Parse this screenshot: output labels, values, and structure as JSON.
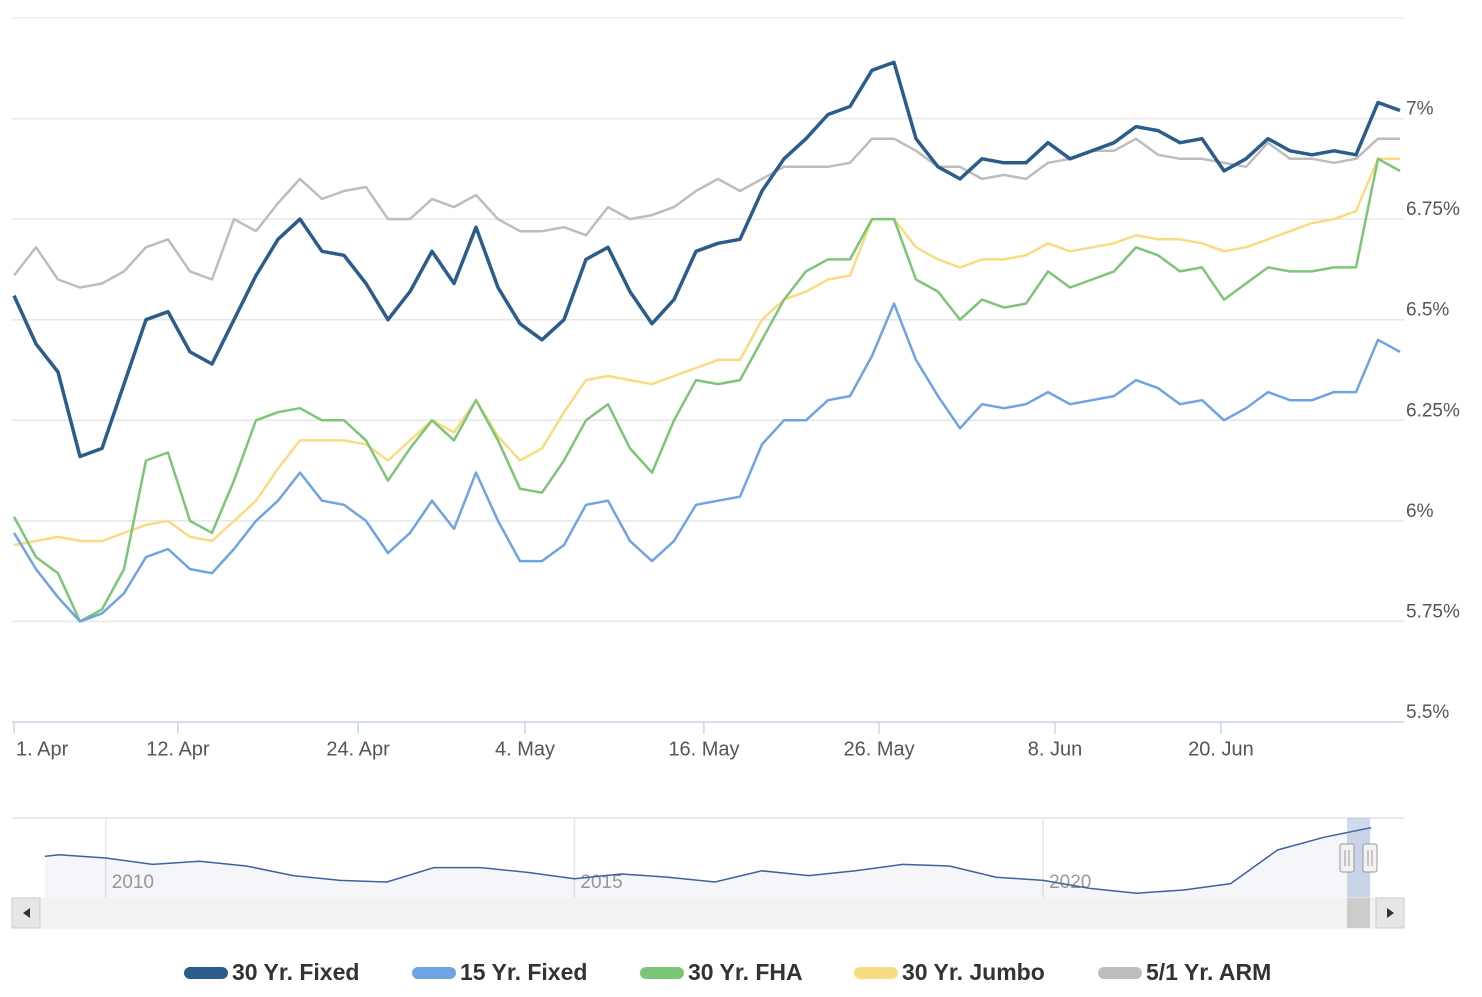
{
  "chart_data": {
    "type": "line",
    "xlim": [
      0,
      63
    ],
    "xticks": [
      {
        "value": 0,
        "label": "1. Apr"
      },
      {
        "value": 7.45,
        "label": "12. Apr"
      },
      {
        "value": 15.64,
        "label": "24. Apr"
      },
      {
        "value": 23.23,
        "label": "4. May"
      },
      {
        "value": 31.36,
        "label": "16. May"
      },
      {
        "value": 39.32,
        "label": "26. May"
      },
      {
        "value": 47.32,
        "label": "8. Jun"
      },
      {
        "value": 54.86,
        "label": "20. Jun"
      }
    ],
    "ylim": [
      5.5,
      7.25
    ],
    "yticks": [
      {
        "value": 5.5,
        "label": "5.5%"
      },
      {
        "value": 5.75,
        "label": "5.75%"
      },
      {
        "value": 6,
        "label": "6%"
      },
      {
        "value": 6.25,
        "label": "6.25%"
      },
      {
        "value": 6.5,
        "label": "6.5%"
      },
      {
        "value": 6.75,
        "label": "6.75%"
      },
      {
        "value": 7,
        "label": "7%"
      }
    ],
    "grid": true,
    "legend": "bottom",
    "series": [
      {
        "name": "30 Yr. Fixed",
        "color": "#2a5d8c",
        "values": [
          6.56,
          6.44,
          6.37,
          6.16,
          6.18,
          6.34,
          6.5,
          6.52,
          6.42,
          6.39,
          6.5,
          6.61,
          6.7,
          6.75,
          6.67,
          6.66,
          6.59,
          6.5,
          6.57,
          6.67,
          6.59,
          6.73,
          6.58,
          6.49,
          6.45,
          6.5,
          6.65,
          6.68,
          6.57,
          6.49,
          6.55,
          6.67,
          6.69,
          6.7,
          6.82,
          6.9,
          6.95,
          7.01,
          7.03,
          7.12,
          7.14,
          6.95,
          6.88,
          6.85,
          6.9,
          6.89,
          6.89,
          6.94,
          6.9,
          6.92,
          6.94,
          6.98,
          6.97,
          6.94,
          6.95,
          6.87,
          6.9,
          6.95,
          6.92,
          6.91,
          6.92,
          6.91,
          7.04,
          7.02
        ]
      },
      {
        "name": "15 Yr. Fixed",
        "color": "#6fa3e3",
        "values": [
          5.97,
          5.88,
          5.81,
          5.75,
          5.77,
          5.82,
          5.91,
          5.93,
          5.88,
          5.87,
          5.93,
          6.0,
          6.05,
          6.12,
          6.05,
          6.04,
          6.0,
          5.92,
          5.97,
          6.05,
          5.98,
          6.12,
          6.0,
          5.9,
          5.9,
          5.94,
          6.04,
          6.05,
          5.95,
          5.9,
          5.95,
          6.04,
          6.05,
          6.06,
          6.19,
          6.25,
          6.25,
          6.3,
          6.31,
          6.41,
          6.54,
          6.4,
          6.31,
          6.23,
          6.29,
          6.28,
          6.29,
          6.32,
          6.29,
          6.3,
          6.31,
          6.35,
          6.33,
          6.29,
          6.3,
          6.25,
          6.28,
          6.32,
          6.3,
          6.3,
          6.32,
          6.32,
          6.45,
          6.42
        ]
      },
      {
        "name": "30 Yr. FHA",
        "color": "#7dc577",
        "values": [
          6.01,
          5.91,
          5.87,
          5.75,
          5.78,
          5.88,
          6.15,
          6.17,
          6.0,
          5.97,
          6.1,
          6.25,
          6.27,
          6.28,
          6.25,
          6.25,
          6.2,
          6.1,
          6.18,
          6.25,
          6.2,
          6.3,
          6.2,
          6.08,
          6.07,
          6.15,
          6.25,
          6.29,
          6.18,
          6.12,
          6.25,
          6.35,
          6.34,
          6.35,
          6.45,
          6.55,
          6.62,
          6.65,
          6.65,
          6.75,
          6.75,
          6.6,
          6.57,
          6.5,
          6.55,
          6.53,
          6.54,
          6.62,
          6.58,
          6.6,
          6.62,
          6.68,
          6.66,
          6.62,
          6.63,
          6.55,
          6.59,
          6.63,
          6.62,
          6.62,
          6.63,
          6.63,
          6.9,
          6.87
        ]
      },
      {
        "name": "30 Yr. Jumbo",
        "color": "#f9dc82",
        "values": [
          5.94,
          5.95,
          5.96,
          5.95,
          5.95,
          5.97,
          5.99,
          6.0,
          5.96,
          5.95,
          6.0,
          6.05,
          6.13,
          6.2,
          6.2,
          6.2,
          6.19,
          6.15,
          6.2,
          6.25,
          6.22,
          6.3,
          6.21,
          6.15,
          6.18,
          6.27,
          6.35,
          6.36,
          6.35,
          6.34,
          6.36,
          6.38,
          6.4,
          6.4,
          6.5,
          6.55,
          6.57,
          6.6,
          6.61,
          6.75,
          6.75,
          6.68,
          6.65,
          6.63,
          6.65,
          6.65,
          6.66,
          6.69,
          6.67,
          6.68,
          6.69,
          6.71,
          6.7,
          6.7,
          6.69,
          6.67,
          6.68,
          6.7,
          6.72,
          6.74,
          6.75,
          6.77,
          6.9,
          6.9
        ]
      },
      {
        "name": "5/1 Yr. ARM",
        "color": "#bdbdbd",
        "values": [
          6.61,
          6.68,
          6.6,
          6.58,
          6.59,
          6.62,
          6.68,
          6.7,
          6.62,
          6.6,
          6.75,
          6.72,
          6.79,
          6.85,
          6.8,
          6.82,
          6.83,
          6.75,
          6.75,
          6.8,
          6.78,
          6.81,
          6.75,
          6.72,
          6.72,
          6.73,
          6.71,
          6.78,
          6.75,
          6.76,
          6.78,
          6.82,
          6.85,
          6.82,
          6.85,
          6.88,
          6.88,
          6.88,
          6.89,
          6.95,
          6.95,
          6.92,
          6.88,
          6.88,
          6.85,
          6.86,
          6.85,
          6.89,
          6.9,
          6.92,
          6.92,
          6.95,
          6.91,
          6.9,
          6.9,
          6.89,
          6.88,
          6.94,
          6.9,
          6.9,
          6.89,
          6.9,
          6.95,
          6.95
        ]
      }
    ],
    "navigator": {
      "xlim": [
        2009,
        2023.85
      ],
      "ylim": [
        2.5,
        7.5
      ],
      "xticks": [
        2010,
        2015,
        2020
      ],
      "color": "#3d62a0",
      "x": [
        2009.35,
        2009.5,
        2010,
        2010.5,
        2011,
        2011.5,
        2012,
        2012.5,
        2013,
        2013.5,
        2014,
        2014.5,
        2015,
        2015.5,
        2016,
        2016.5,
        2017,
        2017.5,
        2018,
        2018.5,
        2019,
        2019.5,
        2020,
        2020.5,
        2021,
        2021.5,
        2022,
        2022.5,
        2023,
        2023.5
      ],
      "values": [
        5.1,
        5.2,
        5.0,
        4.6,
        4.8,
        4.5,
        3.9,
        3.6,
        3.5,
        4.4,
        4.4,
        4.1,
        3.7,
        4.0,
        3.8,
        3.5,
        4.2,
        3.9,
        4.2,
        4.6,
        4.5,
        3.8,
        3.6,
        3.1,
        2.8,
        3.0,
        3.4,
        5.5,
        6.3,
        6.9
      ]
    }
  }
}
